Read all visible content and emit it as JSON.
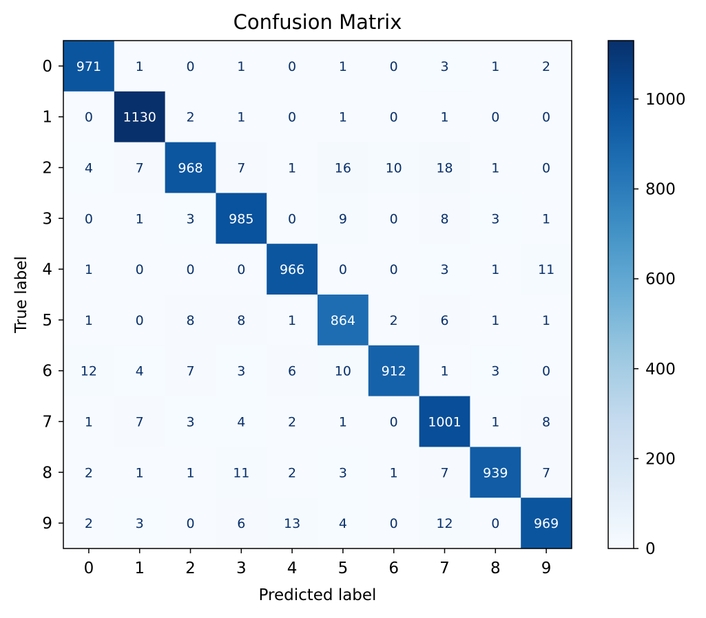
{
  "chart_data": {
    "type": "heatmap",
    "title": "Confusion Matrix",
    "xlabel": "Predicted label",
    "ylabel": "True label",
    "x_categories": [
      "0",
      "1",
      "2",
      "3",
      "4",
      "5",
      "6",
      "7",
      "8",
      "9"
    ],
    "y_categories": [
      "0",
      "1",
      "2",
      "3",
      "4",
      "5",
      "6",
      "7",
      "8",
      "9"
    ],
    "matrix": [
      [
        971,
        1,
        0,
        1,
        0,
        1,
        0,
        3,
        1,
        2
      ],
      [
        0,
        1130,
        2,
        1,
        0,
        1,
        0,
        1,
        0,
        0
      ],
      [
        4,
        7,
        968,
        7,
        1,
        16,
        10,
        18,
        1,
        0
      ],
      [
        0,
        1,
        3,
        985,
        0,
        9,
        0,
        8,
        3,
        1
      ],
      [
        1,
        0,
        0,
        0,
        966,
        0,
        0,
        3,
        1,
        11
      ],
      [
        1,
        0,
        8,
        8,
        1,
        864,
        2,
        6,
        1,
        1
      ],
      [
        12,
        4,
        7,
        3,
        6,
        10,
        912,
        1,
        3,
        0
      ],
      [
        1,
        7,
        3,
        4,
        2,
        1,
        0,
        1001,
        1,
        8
      ],
      [
        2,
        1,
        1,
        11,
        2,
        3,
        1,
        7,
        939,
        7
      ],
      [
        2,
        3,
        0,
        6,
        13,
        4,
        0,
        12,
        0,
        969
      ]
    ],
    "colormap": "Blues",
    "color_range": [
      0,
      1130
    ],
    "colorbar_ticks": [
      0,
      200,
      400,
      600,
      800,
      1000
    ],
    "text_color_light": "#ffffff",
    "text_color_dark": "#08306b"
  }
}
